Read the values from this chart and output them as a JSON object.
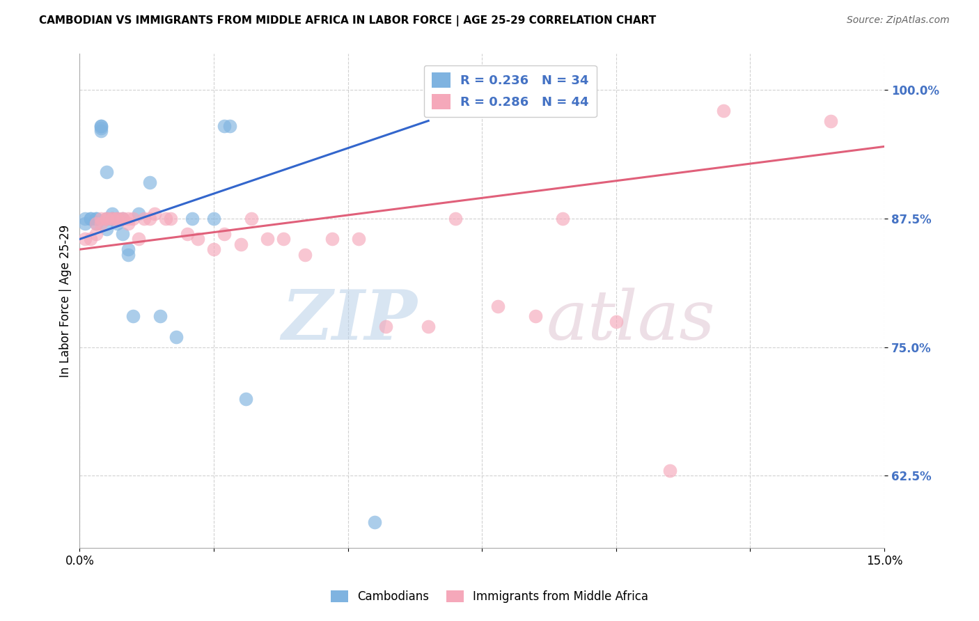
{
  "title": "CAMBODIAN VS IMMIGRANTS FROM MIDDLE AFRICA IN LABOR FORCE | AGE 25-29 CORRELATION CHART",
  "source": "Source: ZipAtlas.com",
  "ylabel": "In Labor Force | Age 25-29",
  "xlim": [
    0.0,
    0.15
  ],
  "ylim": [
    0.555,
    1.035
  ],
  "xticks": [
    0.0,
    0.025,
    0.05,
    0.075,
    0.1,
    0.125,
    0.15
  ],
  "xtick_labels": [
    "0.0%",
    "",
    "",
    "",
    "",
    "",
    "15.0%"
  ],
  "yticks": [
    0.625,
    0.75,
    0.875,
    1.0
  ],
  "ytick_labels": [
    "62.5%",
    "75.0%",
    "87.5%",
    "100.0%"
  ],
  "blue_R": 0.236,
  "blue_N": 34,
  "pink_R": 0.286,
  "pink_N": 44,
  "blue_color": "#7fb3e0",
  "pink_color": "#f5a8ba",
  "blue_line_color": "#3366cc",
  "pink_line_color": "#e0607a",
  "legend_label_blue": "Cambodians",
  "legend_label_pink": "Immigrants from Middle Africa",
  "cambodian_x": [
    0.001,
    0.001,
    0.002,
    0.002,
    0.003,
    0.003,
    0.003,
    0.004,
    0.004,
    0.004,
    0.004,
    0.005,
    0.005,
    0.005,
    0.006,
    0.006,
    0.006,
    0.007,
    0.007,
    0.008,
    0.008,
    0.009,
    0.009,
    0.01,
    0.011,
    0.013,
    0.015,
    0.018,
    0.021,
    0.025,
    0.027,
    0.028,
    0.031,
    0.055
  ],
  "cambodian_y": [
    0.875,
    0.87,
    0.875,
    0.875,
    0.875,
    0.87,
    0.875,
    0.965,
    0.965,
    0.963,
    0.96,
    0.92,
    0.875,
    0.865,
    0.88,
    0.875,
    0.875,
    0.875,
    0.87,
    0.86,
    0.875,
    0.845,
    0.84,
    0.78,
    0.88,
    0.91,
    0.78,
    0.76,
    0.875,
    0.875,
    0.965,
    0.965,
    0.7,
    0.58
  ],
  "africa_x": [
    0.001,
    0.002,
    0.003,
    0.003,
    0.004,
    0.004,
    0.005,
    0.005,
    0.006,
    0.006,
    0.007,
    0.007,
    0.008,
    0.008,
    0.009,
    0.009,
    0.01,
    0.011,
    0.012,
    0.013,
    0.014,
    0.016,
    0.017,
    0.02,
    0.022,
    0.025,
    0.027,
    0.03,
    0.032,
    0.035,
    0.038,
    0.042,
    0.047,
    0.052,
    0.057,
    0.065,
    0.07,
    0.078,
    0.085,
    0.09,
    0.1,
    0.11,
    0.12,
    0.14
  ],
  "africa_y": [
    0.855,
    0.855,
    0.86,
    0.87,
    0.87,
    0.875,
    0.875,
    0.875,
    0.875,
    0.875,
    0.875,
    0.875,
    0.875,
    0.875,
    0.875,
    0.87,
    0.875,
    0.855,
    0.875,
    0.875,
    0.88,
    0.875,
    0.875,
    0.86,
    0.855,
    0.845,
    0.86,
    0.85,
    0.875,
    0.855,
    0.855,
    0.84,
    0.855,
    0.855,
    0.77,
    0.77,
    0.875,
    0.79,
    0.78,
    0.875,
    0.775,
    0.63,
    0.98,
    0.97
  ],
  "blue_trendline_x": [
    0.0,
    0.065
  ],
  "blue_trendline_y": [
    0.855,
    0.97
  ],
  "pink_trendline_x": [
    0.0,
    0.15
  ],
  "pink_trendline_y": [
    0.845,
    0.945
  ]
}
